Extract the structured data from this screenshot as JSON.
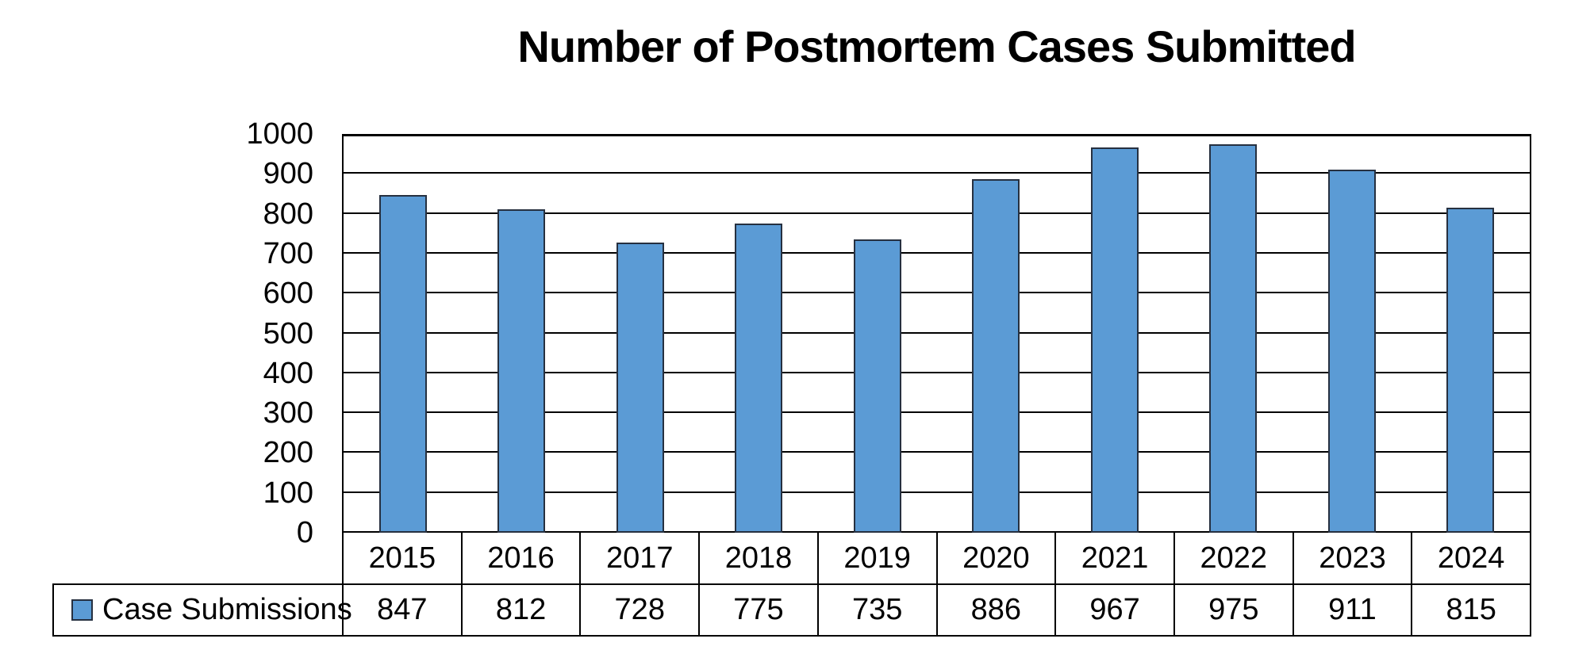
{
  "chart_data": {
    "type": "bar",
    "title": "Number of Postmortem Cases Submitted",
    "categories": [
      "2015",
      "2016",
      "2017",
      "2018",
      "2019",
      "2020",
      "2021",
      "2022",
      "2023",
      "2024"
    ],
    "series": [
      {
        "name": "Case Submissions",
        "values": [
          847,
          812,
          728,
          775,
          735,
          886,
          967,
          975,
          911,
          815
        ]
      }
    ],
    "ylim": [
      0,
      1000
    ],
    "ytick_step": 100,
    "ytick_labels": [
      "0",
      "100",
      "200",
      "300",
      "400",
      "500",
      "600",
      "700",
      "800",
      "900",
      "1000"
    ],
    "grid": true,
    "gridline_color": "#000000",
    "legend_position": "bottom-left-data-table",
    "data_table_shown": true,
    "bar_fill_color": "#5B9BD5",
    "bar_border_color": "#263040",
    "text_color": "#000000",
    "background_color": "#FFFFFF"
  }
}
